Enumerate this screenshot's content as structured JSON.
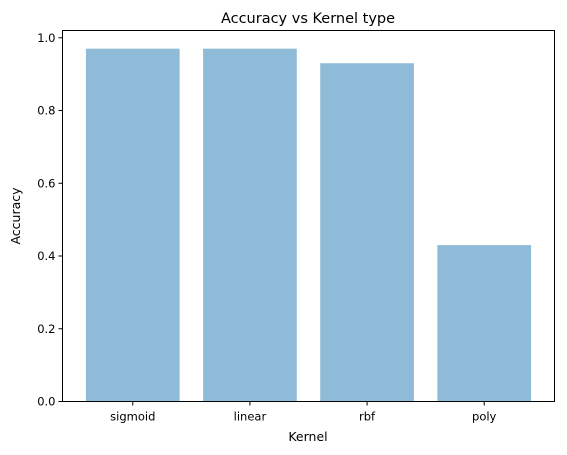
{
  "chart_data": {
    "type": "bar",
    "title": "Accuracy vs Kernel type",
    "xlabel": "Kernel",
    "ylabel": "Accuracy",
    "categories": [
      "sigmoid",
      "linear",
      "rbf",
      "poly"
    ],
    "values": [
      0.97,
      0.97,
      0.93,
      0.43
    ],
    "ylim": [
      0,
      1.02
    ],
    "yticks": [
      0.0,
      0.2,
      0.4,
      0.6,
      0.8,
      1.0
    ],
    "ytick_labels": [
      "0.0",
      "0.2",
      "0.4",
      "0.6",
      "0.8",
      "1.0"
    ],
    "bar_color": "#8fbbd9",
    "grid": false,
    "legend": "none"
  }
}
